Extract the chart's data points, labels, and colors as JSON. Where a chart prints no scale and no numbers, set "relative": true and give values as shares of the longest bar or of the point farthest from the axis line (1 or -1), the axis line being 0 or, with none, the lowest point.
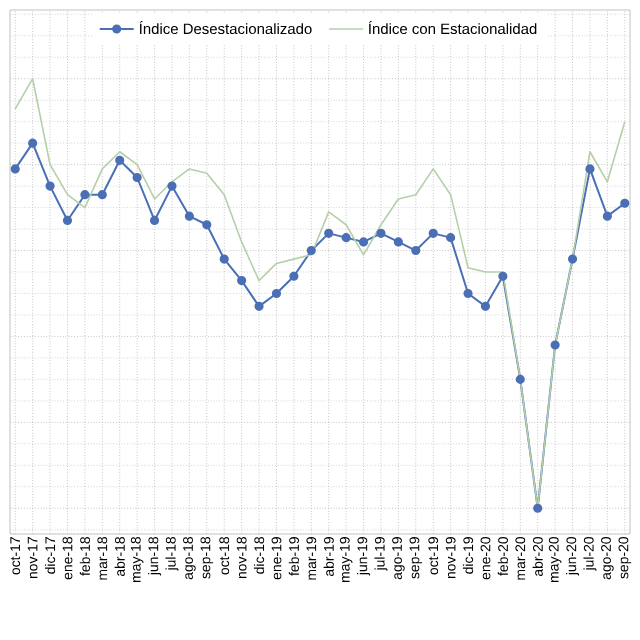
{
  "chart_data": {
    "type": "line",
    "relative": true,
    "grid": true,
    "legend": "top",
    "tick_labels": "x",
    "categories": [
      "oct-17",
      "nov-17",
      "dic-17",
      "ene-18",
      "feb-18",
      "mar-18",
      "abr-18",
      "may-18",
      "jun-18",
      "jul-18",
      "ago-18",
      "sep-18",
      "oct-18",
      "nov-18",
      "dic-18",
      "ene-19",
      "feb-19",
      "mar-19",
      "abr-19",
      "may-19",
      "jun-19",
      "jul-19",
      "ago-19",
      "sep-19",
      "oct-19",
      "nov-19",
      "dic-19",
      "ene-20",
      "feb-20",
      "mar-20",
      "abr-20",
      "may-20",
      "jun-20",
      "jul-20",
      "ago-20",
      "sep-20"
    ],
    "series": [
      {
        "name": "Índice Desestacionalizado",
        "color": "#4a6fb5",
        "marker": "circle",
        "values": [
          0.79,
          0.85,
          0.75,
          0.67,
          0.73,
          0.73,
          0.81,
          0.77,
          0.67,
          0.75,
          0.68,
          0.66,
          0.58,
          0.53,
          0.47,
          0.5,
          0.54,
          0.6,
          0.64,
          0.63,
          0.62,
          0.64,
          0.62,
          0.6,
          0.64,
          0.63,
          0.5,
          0.47,
          0.54,
          0.3,
          0,
          0.38,
          0.58,
          0.79,
          0.68,
          0.71
        ]
      },
      {
        "name": "Índice con Estacionalidad",
        "color": "#b5cfa8",
        "marker": "none",
        "values": [
          0.93,
          1,
          0.8,
          0.73,
          0.7,
          0.79,
          0.83,
          0.8,
          0.72,
          0.76,
          0.79,
          0.78,
          0.73,
          0.62,
          0.53,
          0.57,
          0.58,
          0.59,
          0.69,
          0.66,
          0.59,
          0.66,
          0.72,
          0.73,
          0.79,
          0.73,
          0.56,
          0.55,
          0.55,
          0.3,
          0,
          0.38,
          0.58,
          0.83,
          0.76,
          0.9
        ]
      }
    ]
  }
}
